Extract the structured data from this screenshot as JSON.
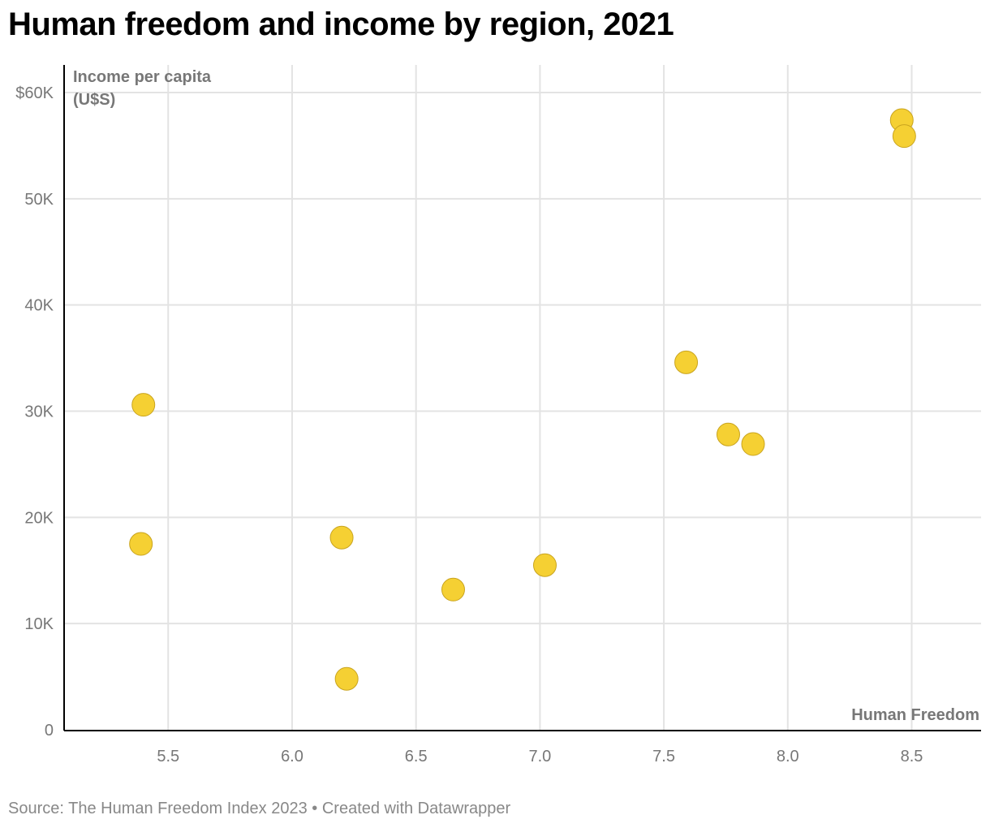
{
  "title": "Human freedom and income by region, 2021",
  "source": "Source: The Human Freedom Index 2023 • Created with Datawrapper",
  "colors": {
    "dot_fill": "#f5d033",
    "dot_stroke": "#c9a41f",
    "grid": "#e3e3e3",
    "axis": "#000000",
    "tick_text": "#777777",
    "label_text": "#777777"
  },
  "chart_data": {
    "type": "scatter",
    "xlabel": "Human Freedom",
    "ylabel": "Income per capita (U$S)",
    "ylabel_lines": [
      "Income per capita",
      "(U$S)"
    ],
    "xlim": [
      5.08,
      8.78
    ],
    "ylim": [
      0,
      60000
    ],
    "x_ticks": [
      5.5,
      6.0,
      6.5,
      7.0,
      7.5,
      8.0,
      8.5
    ],
    "x_tick_labels": [
      "5.5",
      "6.0",
      "6.5",
      "7.0",
      "7.5",
      "8.0",
      "8.5"
    ],
    "y_ticks": [
      0,
      10000,
      20000,
      30000,
      40000,
      50000,
      60000
    ],
    "y_tick_labels": [
      "0",
      "10K",
      "20K",
      "30K",
      "40K",
      "50K",
      "$60K"
    ],
    "grid": true,
    "points": [
      {
        "x": 5.4,
        "y": 30600
      },
      {
        "x": 5.39,
        "y": 17500
      },
      {
        "x": 6.2,
        "y": 18100
      },
      {
        "x": 6.22,
        "y": 4800
      },
      {
        "x": 6.65,
        "y": 13200
      },
      {
        "x": 7.02,
        "y": 15500
      },
      {
        "x": 7.59,
        "y": 34600
      },
      {
        "x": 7.76,
        "y": 27800
      },
      {
        "x": 7.86,
        "y": 26900
      },
      {
        "x": 8.46,
        "y": 57400
      },
      {
        "x": 8.47,
        "y": 55900
      }
    ]
  }
}
